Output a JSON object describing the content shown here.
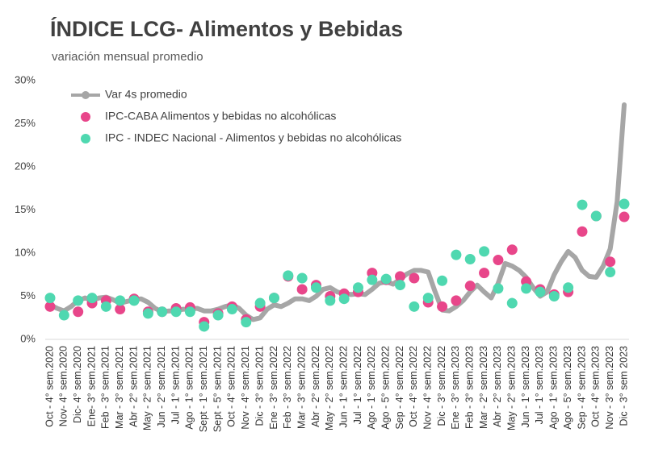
{
  "chart_data": {
    "type": "line",
    "title": "ÍNDICE LCG- Alimentos y Bebidas",
    "subtitle": "variación mensual promedio",
    "categories": [
      "Oct - 4° sem.2020",
      null,
      "Nov- 4° sem.2020",
      null,
      "Dic- 4° sem.2020",
      null,
      "Ene- 3° sem.2021",
      null,
      "Feb - 3° sem.2021",
      null,
      "Mar - 3° sem.2021",
      null,
      "Abr - 2° sem.2021",
      null,
      "May - 2° sem.2021",
      null,
      "Jun - 2° sem.2021",
      null,
      "Jul - 1° sem.2021",
      null,
      "Ago - 1° sem.2021",
      null,
      "Sept - 1° sem.2021",
      null,
      "Sept - 5° sem.2021",
      null,
      "Oct - 4° sem.2021",
      null,
      "Nov - 4° sem.2021",
      null,
      "Dic - 3° sem.2021",
      null,
      "Ene - 3° sem.2022",
      null,
      "Feb - 3° sem.2022",
      null,
      "Mar - 3° sem.2022",
      null,
      "Abr - 2° sem.2022",
      null,
      "May - 2° sem.2022",
      null,
      "Jun - 1° sem.2022",
      null,
      "Jul - 1° sem.2022",
      null,
      "Ago - 1° sem.2022",
      null,
      "Ago - 5° sem.2022",
      null,
      "Sep - 4° sem.2022",
      null,
      "Oct - 4° sem.2022",
      null,
      "Nov - 4° sem.2022",
      null,
      "Dic - 3° sem.2022",
      null,
      "Ene - 3° sem.2023",
      null,
      "Feb - 3° sem.2023",
      null,
      "Mar - 2° sem.2023",
      null,
      "Abr - 2° sem.2023",
      null,
      "May - 2° sem.2023",
      null,
      "Jun - 1° sem.2023",
      null,
      "Jul - 1° sem.2023",
      null,
      "Ago - 1° sem.2023",
      null,
      "Ago - 5° sem.2023",
      null,
      "Sep - 4° sem.2023",
      null,
      "Oct - 4° sem.2023",
      null,
      "Nov - 3° sem.2023",
      null,
      "Dic - 3° sem 2023"
    ],
    "series": [
      {
        "name": "Var 4s promedio",
        "color": "#a6a6a6",
        "kind": "line",
        "values": [
          4.0,
          3.6,
          3.3,
          3.8,
          4.5,
          4.8,
          4.5,
          4.8,
          4.9,
          4.6,
          4.2,
          4.4,
          4.6,
          4.7,
          4.3,
          3.6,
          3.2,
          3.3,
          3.3,
          3.5,
          3.5,
          3.6,
          3.3,
          3.3,
          3.5,
          3.8,
          4.0,
          3.6,
          2.8,
          2.3,
          2.5,
          3.5,
          4.0,
          3.8,
          4.2,
          4.7,
          4.7,
          4.5,
          5.0,
          5.8,
          6.0,
          5.5,
          5.3,
          5.2,
          5.3,
          5.2,
          5.8,
          6.5,
          6.7,
          6.4,
          7.0,
          7.6,
          8.0,
          8.0,
          7.8,
          5.5,
          3.4,
          3.3,
          3.8,
          4.5,
          5.5,
          6.3,
          5.5,
          4.8,
          6.5,
          8.8,
          8.5,
          8.0,
          7.2,
          6.0,
          5.0,
          5.5,
          7.5,
          9.0,
          10.2,
          9.5,
          8.0,
          7.3,
          7.2,
          8.5,
          10.5,
          16.0,
          27.2
        ]
      },
      {
        "name": "IPC-CABA Alimentos y bebidas no alcohólicas",
        "color": "#e8468a",
        "kind": "scatter",
        "values": [
          3.8,
          null,
          null,
          null,
          3.2,
          null,
          4.2,
          null,
          4.5,
          null,
          3.5,
          null,
          4.7,
          null,
          3.2,
          null,
          3.2,
          null,
          3.6,
          null,
          3.7,
          null,
          2.0,
          null,
          3.0,
          null,
          3.8,
          null,
          2.3,
          null,
          3.8,
          null,
          4.8,
          null,
          7.3,
          null,
          5.8,
          null,
          6.3,
          null,
          5.0,
          null,
          5.3,
          null,
          5.5,
          null,
          7.7,
          null,
          6.9,
          null,
          7.3,
          null,
          7.1,
          null,
          4.3,
          null,
          3.8,
          null,
          4.5,
          null,
          6.2,
          null,
          7.7,
          null,
          9.2,
          null,
          10.4,
          null,
          6.7,
          null,
          5.8,
          null,
          5.2,
          null,
          5.5,
          null,
          12.5,
          null,
          14.3,
          null,
          9.0,
          null,
          14.2
        ]
      },
      {
        "name": "IPC - INDEC Nacional - Alimentos y bebidas no alcohólicas",
        "color": "#4fd8b0",
        "kind": "scatter",
        "values": [
          4.8,
          null,
          2.8,
          null,
          4.5,
          null,
          4.8,
          null,
          3.8,
          null,
          4.5,
          null,
          4.5,
          null,
          3.0,
          null,
          3.2,
          null,
          3.2,
          null,
          3.2,
          null,
          1.5,
          null,
          2.8,
          null,
          3.5,
          null,
          2.0,
          null,
          4.2,
          null,
          4.8,
          null,
          7.4,
          null,
          7.1,
          null,
          6.0,
          null,
          4.5,
          null,
          4.7,
          null,
          6.0,
          null,
          6.9,
          null,
          7.0,
          null,
          6.3,
          null,
          3.8,
          null,
          4.8,
          null,
          6.8,
          null,
          9.8,
          null,
          9.3,
          null,
          10.2,
          null,
          5.9,
          null,
          4.2,
          null,
          5.9,
          null,
          5.5,
          null,
          5.0,
          null,
          6.0,
          null,
          15.6,
          null,
          14.3,
          null,
          7.8,
          null,
          15.7
        ]
      }
    ],
    "ylim": [
      0,
      30
    ],
    "yticks": [
      {
        "value": 0,
        "label": "0%"
      },
      {
        "value": 5,
        "label": "5%"
      },
      {
        "value": 10,
        "label": "10%"
      },
      {
        "value": 15,
        "label": "15%"
      },
      {
        "value": 20,
        "label": "20%"
      },
      {
        "value": 25,
        "label": "25%"
      },
      {
        "value": 30,
        "label": "30%"
      }
    ],
    "grid": false,
    "legend": "top-left"
  }
}
